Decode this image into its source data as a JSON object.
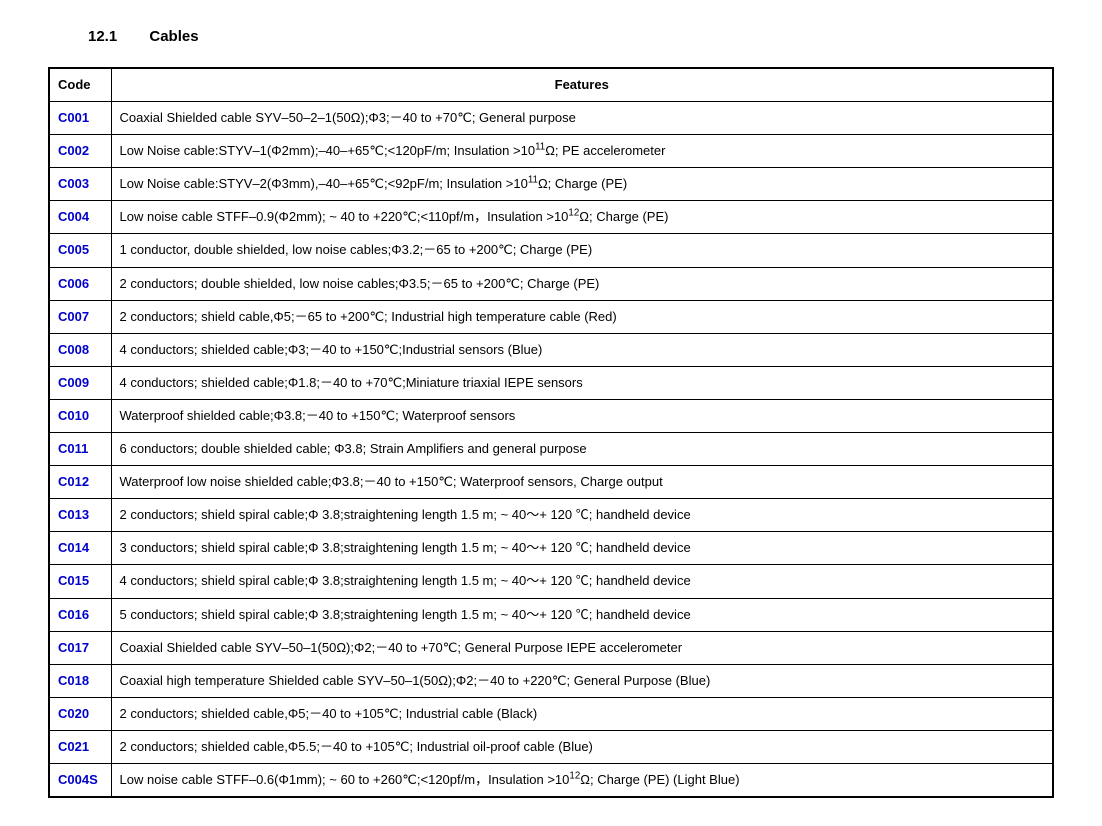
{
  "heading": {
    "number": "12.1",
    "title": "Cables"
  },
  "table": {
    "columns": {
      "code": "Code",
      "features": "Features"
    },
    "code_color": "#0000cc",
    "border_color": "#000000",
    "background_color": "#ffffff",
    "font_size_pt": 10,
    "rows": [
      {
        "code": "C001",
        "features": "Coaxial Shielded cable SYV–50–2–1(50Ω);Φ3;－40 to +70℃; General purpose"
      },
      {
        "code": "C002",
        "features": "Low Noise cable:STYV–1(Φ2mm);–40–+65℃;<120pF/m; Insulation >10{sup11}Ω; PE accelerometer"
      },
      {
        "code": "C003",
        "features": "Low Noise cable:STYV–2(Φ3mm),–40–+65℃;<92pF/m; Insulation >10{sup11}Ω; Charge (PE)"
      },
      {
        "code": "C004",
        "features": "Low noise cable STFF–0.9(Φ2mm); ~ 40 to +220℃;<110pf/m，Insulation >10{sup12}Ω; Charge (PE)"
      },
      {
        "code": "C005",
        "features": "1 conductor, double shielded, low noise cables;Φ3.2;－65 to +200℃; Charge (PE)"
      },
      {
        "code": "C006",
        "features": "2 conductors; double shielded, low noise cables;Φ3.5;－65 to +200℃; Charge (PE)"
      },
      {
        "code": "C007",
        "features": "2 conductors; shield cable,Φ5;－65 to +200℃; Industrial high temperature cable (Red)"
      },
      {
        "code": "C008",
        "features": "4 conductors; shielded cable;Φ3;－40 to +150℃;Industrial sensors (Blue)"
      },
      {
        "code": "C009",
        "features": "4 conductors; shielded cable;Φ1.8;－40 to +70℃;Miniature triaxial IEPE sensors"
      },
      {
        "code": "C010",
        "features": "Waterproof shielded cable;Φ3.8;－40 to +150℃; Waterproof sensors"
      },
      {
        "code": "C011",
        "features": "6 conductors; double shielded cable; Φ3.8; Strain Amplifiers and general purpose"
      },
      {
        "code": "C012",
        "features": "Waterproof low noise shielded cable;Φ3.8;－40 to +150℃; Waterproof sensors, Charge output"
      },
      {
        "code": "C013",
        "features": "2 conductors; shield spiral cable;Φ 3.8;straightening length 1.5 m; ~ 40～+ 120 ℃; handheld device"
      },
      {
        "code": "C014",
        "features": "3 conductors; shield spiral cable;Φ 3.8;straightening length 1.5 m; ~ 40～+ 120 ℃; handheld device"
      },
      {
        "code": "C015",
        "features": "4 conductors; shield spiral cable;Φ 3.8;straightening length 1.5 m; ~ 40～+ 120 ℃; handheld device"
      },
      {
        "code": "C016",
        "features": "5 conductors; shield spiral cable;Φ 3.8;straightening length 1.5 m; ~ 40～+ 120 ℃; handheld device"
      },
      {
        "code": "C017",
        "features": "Coaxial Shielded cable SYV–50–1(50Ω);Φ2;－40 to +70℃; General Purpose IEPE accelerometer"
      },
      {
        "code": "C018",
        "features": "Coaxial high temperature Shielded cable SYV–50–1(50Ω);Φ2;－40 to +220℃; General Purpose (Blue)"
      },
      {
        "code": "C020",
        "features": "2 conductors; shielded cable,Φ5;－40 to +105℃; Industrial cable (Black)"
      },
      {
        "code": "C021",
        "features": "2 conductors; shielded cable,Φ5.5;－40 to +105℃; Industrial oil-proof cable (Blue)"
      },
      {
        "code": "C004S",
        "features": "Low noise cable STFF–0.6(Φ1mm); ~ 60 to +260℃;<120pf/m，Insulation >10{sup12}Ω; Charge (PE) (Light Blue)"
      }
    ]
  }
}
